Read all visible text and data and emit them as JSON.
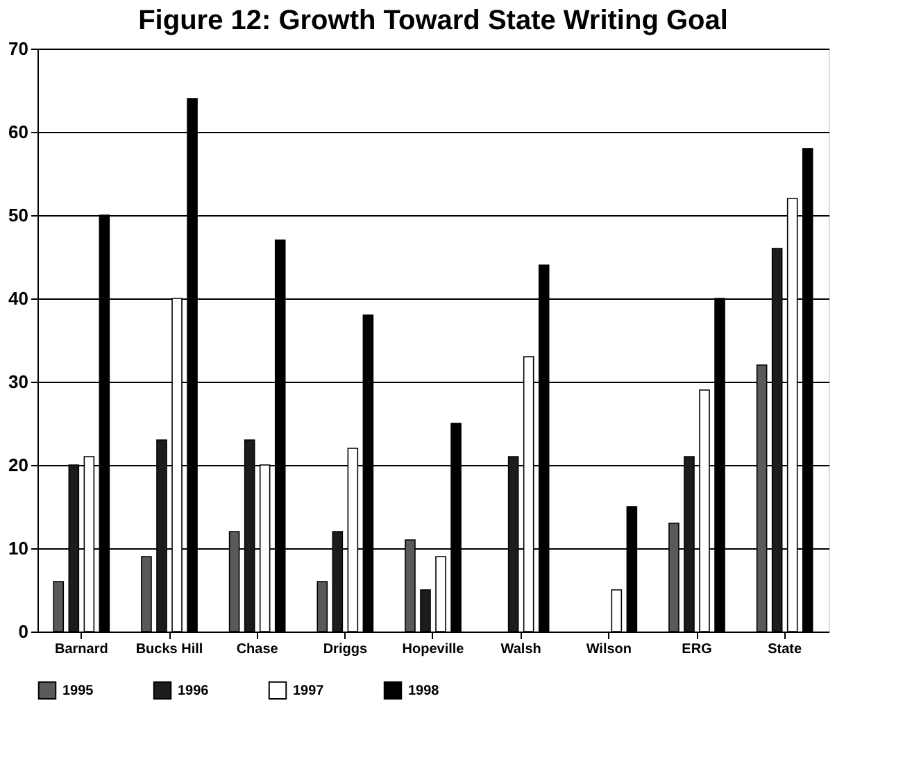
{
  "chart_data": {
    "type": "bar",
    "title": "Figure 12: Growth Toward State Writing Goal",
    "categories": [
      "Barnard",
      "Bucks Hill",
      "Chase",
      "Driggs",
      "Hopeville",
      "Walsh",
      "Wilson",
      "ERG",
      "State"
    ],
    "series": [
      {
        "name": "1995",
        "color": "#5a5a5a",
        "values": [
          6,
          9,
          12,
          6,
          11,
          null,
          null,
          13,
          32
        ]
      },
      {
        "name": "1996",
        "color": "#1c1c1c",
        "values": [
          20,
          23,
          23,
          12,
          5,
          21,
          null,
          21,
          46
        ]
      },
      {
        "name": "1997",
        "color": "#ffffff",
        "values": [
          21,
          40,
          20,
          22,
          9,
          33,
          5,
          29,
          52
        ]
      },
      {
        "name": "1998",
        "color": "#000000",
        "values": [
          50,
          64,
          47,
          38,
          25,
          44,
          15,
          40,
          58
        ]
      }
    ],
    "ylim": [
      0,
      70
    ],
    "yticks": [
      0,
      10,
      20,
      30,
      40,
      50,
      60,
      70
    ],
    "grid": "y",
    "legend": "bottom"
  }
}
